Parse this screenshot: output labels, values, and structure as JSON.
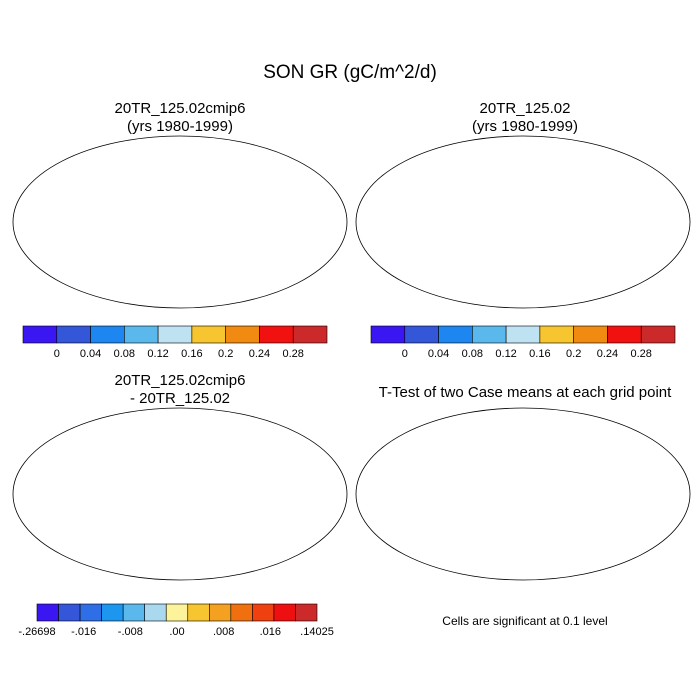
{
  "figure": {
    "title": "SON GR (gC/m^2/d)"
  },
  "panels": [
    {
      "title_line1": "20TR_125.02cmip6",
      "title_line2": "(yrs 1980-1999)"
    },
    {
      "title_line1": "20TR_125.02",
      "title_line2": "(yrs 1980-1999)"
    },
    {
      "title_line1": "20TR_125.02cmip6",
      "title_line2": "- 20TR_125.02"
    },
    {
      "title_line1": "T-Test of two Case means at each grid point",
      "title_line2": ""
    }
  ],
  "colorbars": {
    "absolute": {
      "colors": [
        "#3a17f2",
        "#3456d9",
        "#1d86f0",
        "#5ab8ec",
        "#bfe2f3",
        "#f6c52f",
        "#f08a10",
        "#f21111",
        "#cc2a2a"
      ],
      "labels": [
        "0",
        "0.04",
        "0.08",
        "0.12",
        "0.16",
        "0.2",
        "0.24",
        "0.28"
      ]
    },
    "difference": {
      "colors": [
        "#3a17f2",
        "#3456d9",
        "#2e6ee6",
        "#1d96f0",
        "#5ab8ec",
        "#a9d8ef",
        "#fcf39a",
        "#f6c52f",
        "#f4a020",
        "#f07010",
        "#ef4010",
        "#ee1010",
        "#cc2a2a"
      ],
      "labels": [
        "-.26698",
        "-.016",
        "-.008",
        ".00",
        ".008",
        ".016",
        ".14025"
      ]
    }
  },
  "ttest_note": "Cells are significant at 0.1 level",
  "map_colors": {
    "ocean": "#ffffff",
    "land_abs": "#3456d9",
    "land_diff": "#a9d8ef",
    "significant": "#ee1010",
    "coast": "#000000"
  }
}
